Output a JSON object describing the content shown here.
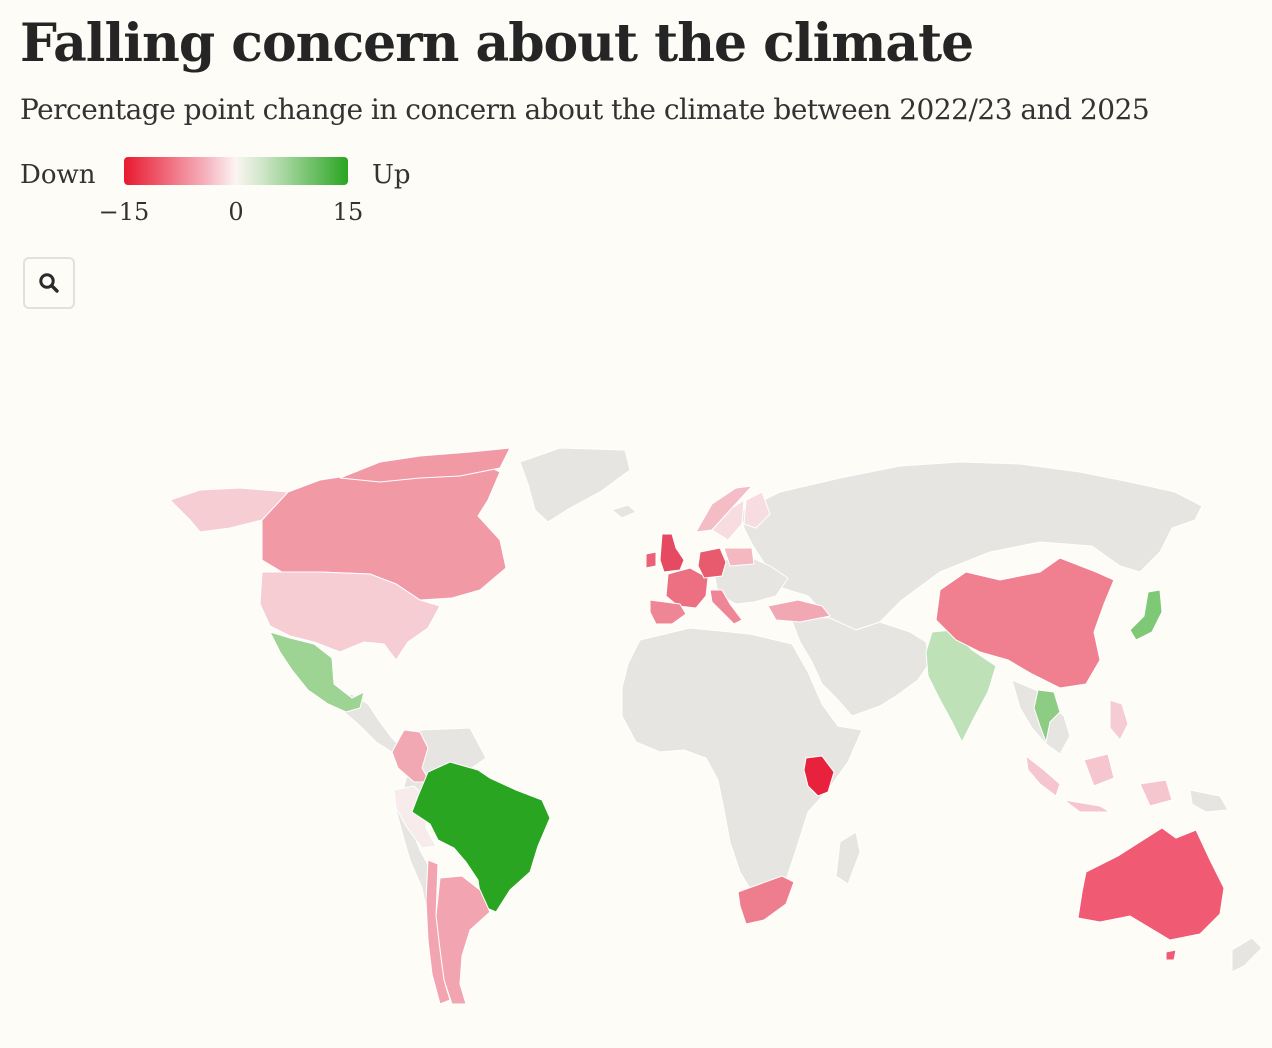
{
  "title": "Falling concern about the climate",
  "subtitle": "Percentage point change in concern about the climate between 2022/23 and 2025",
  "legend": {
    "down_label": "Down",
    "up_label": "Up",
    "min_tick": "−15",
    "mid_tick": "0",
    "max_tick": "15",
    "colors": {
      "min": "#e8192f",
      "mid": "#fbf5f2",
      "max": "#2aa521"
    }
  },
  "search": {
    "icon": "search-icon"
  },
  "map": {
    "base_color": "#e6e5e1",
    "background": "#fdfcf7",
    "countries": [
      {
        "name": "Canada",
        "change": -6.5,
        "color": "#f19aa6"
      },
      {
        "name": "Greenland",
        "change": null,
        "color": "#e6e5e1"
      },
      {
        "name": "United States",
        "change": -3.5,
        "color": "#f5cdd3"
      },
      {
        "name": "Mexico",
        "change": 5.5,
        "color": "#9dd494"
      },
      {
        "name": "Colombia",
        "change": -5,
        "color": "#f2a8b2"
      },
      {
        "name": "Peru",
        "change": -1,
        "color": "#f7ebeb"
      },
      {
        "name": "Brazil",
        "change": 15,
        "color": "#2aa521"
      },
      {
        "name": "Argentina",
        "change": -5,
        "color": "#f2a4b0"
      },
      {
        "name": "Chile",
        "change": -5,
        "color": "#f2a4b0"
      },
      {
        "name": "United Kingdom",
        "change": -11,
        "color": "#e64a62"
      },
      {
        "name": "Ireland",
        "change": -10,
        "color": "#ea6276"
      },
      {
        "name": "France",
        "change": -9,
        "color": "#ec6f82"
      },
      {
        "name": "Spain",
        "change": -7,
        "color": "#ef8695"
      },
      {
        "name": "Germany",
        "change": -10,
        "color": "#e85a6e"
      },
      {
        "name": "Italy",
        "change": -7,
        "color": "#ef8695"
      },
      {
        "name": "Poland",
        "change": -4,
        "color": "#f4b8c1"
      },
      {
        "name": "Norway",
        "change": -4,
        "color": "#f4bcc5"
      },
      {
        "name": "Sweden",
        "change": -2,
        "color": "#f7dde1"
      },
      {
        "name": "Finland",
        "change": -2,
        "color": "#f7dde1"
      },
      {
        "name": "Turkey",
        "change": -5,
        "color": "#f2a8b2"
      },
      {
        "name": "Kenya",
        "change": -14,
        "color": "#e8223c"
      },
      {
        "name": "South Africa",
        "change": -8,
        "color": "#ee7e8e"
      },
      {
        "name": "India",
        "change": 3.5,
        "color": "#bfe1b8"
      },
      {
        "name": "China",
        "change": -8,
        "color": "#f07f8f"
      },
      {
        "name": "Japan",
        "change": 6.5,
        "color": "#7fc876"
      },
      {
        "name": "Thailand",
        "change": 6,
        "color": "#8ccd83"
      },
      {
        "name": "Indonesia",
        "change": -3.5,
        "color": "#f5c6cd"
      },
      {
        "name": "Philippines",
        "change": -3,
        "color": "#f5ccd2"
      },
      {
        "name": "Australia",
        "change": -10,
        "color": "#f05a72"
      }
    ]
  }
}
